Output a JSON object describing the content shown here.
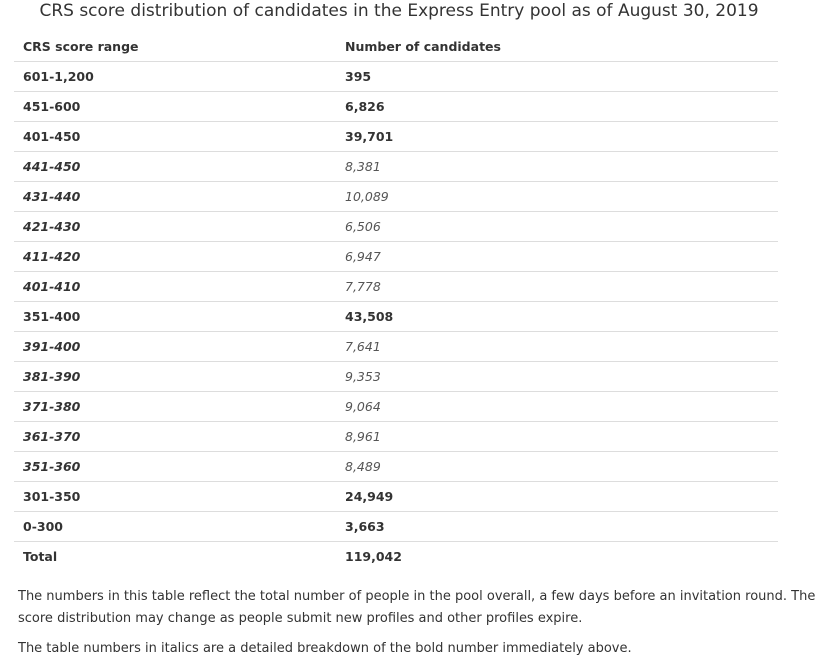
{
  "caption": "CRS score distribution of candidates in the Express Entry pool as of August 30, 2019",
  "table": {
    "headers": [
      "CRS score range",
      "Number of candidates"
    ],
    "rows": [
      {
        "range": "601-1,200",
        "count": "395",
        "style": "bold"
      },
      {
        "range": "451-600",
        "count": "6,826",
        "style": "bold"
      },
      {
        "range": "401-450",
        "count": "39,701",
        "style": "bold"
      },
      {
        "range": "441-450",
        "count": "8,381",
        "style": "italic"
      },
      {
        "range": "431-440",
        "count": "10,089",
        "style": "italic"
      },
      {
        "range": "421-430",
        "count": "6,506",
        "style": "italic"
      },
      {
        "range": "411-420",
        "count": "6,947",
        "style": "italic"
      },
      {
        "range": "401-410",
        "count": "7,778",
        "style": "italic"
      },
      {
        "range": "351-400",
        "count": "43,508",
        "style": "bold"
      },
      {
        "range": "391-400",
        "count": "7,641",
        "style": "italic"
      },
      {
        "range": "381-390",
        "count": "9,353",
        "style": "italic"
      },
      {
        "range": "371-380",
        "count": "9,064",
        "style": "italic"
      },
      {
        "range": "361-370",
        "count": "8,961",
        "style": "italic"
      },
      {
        "range": "351-360",
        "count": "8,489",
        "style": "italic"
      },
      {
        "range": "301-350",
        "count": "24,949",
        "style": "bold"
      },
      {
        "range": "0-300",
        "count": "3,663",
        "style": "bold"
      },
      {
        "range": "Total",
        "count": "119,042",
        "style": "bold"
      }
    ]
  },
  "notes": [
    "The numbers in this table reflect the total number of people in the pool overall, a few days before an invitation round. The score distribution may change as people submit new profiles and other profiles expire.",
    "The table numbers in italics are a detailed breakdown of the bold number immediately above."
  ]
}
